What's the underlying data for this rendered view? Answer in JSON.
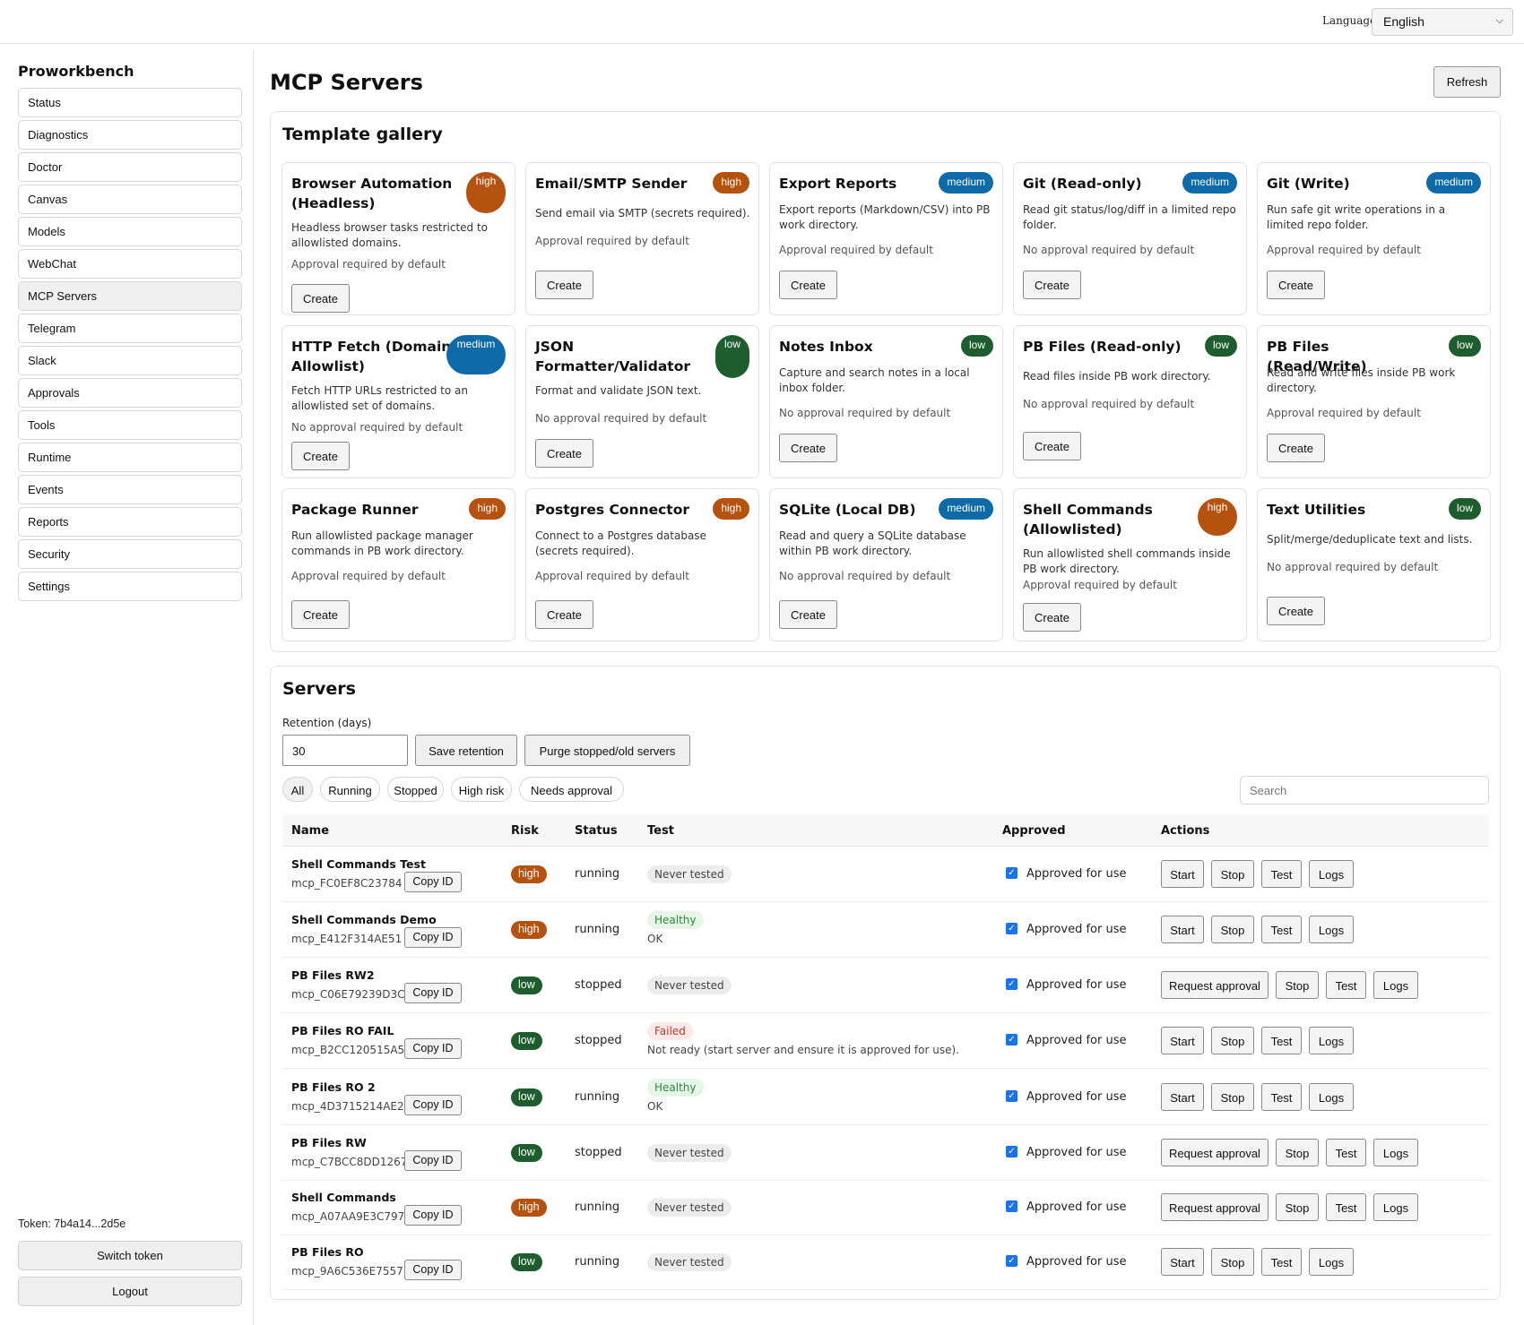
{
  "topbar": {
    "language_label": "Language",
    "language_value": "English"
  },
  "sidebar": {
    "brand": "Proworkbench",
    "items": [
      "Status",
      "Diagnostics",
      "Doctor",
      "Canvas",
      "Models",
      "WebChat",
      "MCP Servers",
      "Telegram",
      "Slack",
      "Approvals",
      "Tools",
      "Runtime",
      "Events",
      "Reports",
      "Security",
      "Settings"
    ],
    "active_item": "MCP Servers",
    "token": "Token: 7b4a14...2d5e",
    "switch_token": "Switch token",
    "logout": "Logout"
  },
  "page": {
    "title": "MCP Servers",
    "refresh": "Refresh"
  },
  "gallery": {
    "title": "Template gallery",
    "create_label": "Create",
    "cards": [
      {
        "title": "Browser Automation (Headless)",
        "risk": "high",
        "desc": "Headless browser tasks restricted to allowlisted domains.",
        "approval": "Approval required by default"
      },
      {
        "title": "Email/SMTP Sender",
        "risk": "high",
        "desc": "Send email via SMTP (secrets required).",
        "approval": "Approval required by default"
      },
      {
        "title": "Export Reports",
        "risk": "medium",
        "desc": "Export reports (Markdown/CSV) into PB work directory.",
        "approval": "Approval required by default"
      },
      {
        "title": "Git (Read-only)",
        "risk": "medium",
        "desc": "Read git status/log/diff in a limited repo folder.",
        "approval": "No approval required by default"
      },
      {
        "title": "Git (Write)",
        "risk": "medium",
        "desc": "Run safe git write operations in a limited repo folder.",
        "approval": "Approval required by default"
      },
      {
        "title": "HTTP Fetch (Domain Allowlist)",
        "risk": "medium",
        "desc": "Fetch HTTP URLs restricted to an allowlisted set of domains.",
        "approval": "No approval required by default"
      },
      {
        "title": "JSON Formatter/Validator",
        "risk": "low",
        "desc": "Format and validate JSON text.",
        "approval": "No approval required by default"
      },
      {
        "title": "Notes Inbox",
        "risk": "low",
        "desc": "Capture and search notes in a local inbox folder.",
        "approval": "No approval required by default"
      },
      {
        "title": "PB Files (Read-only)",
        "risk": "low",
        "desc": "Read files inside PB work directory.",
        "approval": "No approval required by default"
      },
      {
        "title": "PB Files (Read/Write)",
        "risk": "low",
        "desc": "Read and write files inside PB work directory.",
        "approval": "Approval required by default"
      },
      {
        "title": "Package Runner",
        "risk": "high",
        "desc": "Run allowlisted package manager commands in PB work directory.",
        "approval": "Approval required by default"
      },
      {
        "title": "Postgres Connector",
        "risk": "high",
        "desc": "Connect to a Postgres database (secrets required).",
        "approval": "Approval required by default"
      },
      {
        "title": "SQLite (Local DB)",
        "risk": "medium",
        "desc": "Read and query a SQLite database within PB work directory.",
        "approval": "No approval required by default"
      },
      {
        "title": "Shell Commands (Allowlisted)",
        "risk": "high",
        "desc": "Run allowlisted shell commands inside PB work directory.",
        "approval": "Approval required by default"
      },
      {
        "title": "Text Utilities",
        "risk": "low",
        "desc": "Split/merge/deduplicate text and lists.",
        "approval": "No approval required by default"
      }
    ]
  },
  "servers": {
    "title": "Servers",
    "retention_label": "Retention (days)",
    "retention_value": "30",
    "save_retention": "Save retention",
    "purge": "Purge stopped/old servers",
    "filters": [
      "All",
      "Running",
      "Stopped",
      "High risk",
      "Needs approval"
    ],
    "active_filter": "All",
    "search_placeholder": "Search",
    "columns": [
      "Name",
      "Risk",
      "Status",
      "Test",
      "Approved",
      "Actions"
    ],
    "copy_label": "Copy ID",
    "approved_label": "Approved for use",
    "actions": {
      "start": "Start",
      "request": "Request approval",
      "stop": "Stop",
      "test": "Test",
      "logs": "Logs"
    },
    "rows": [
      {
        "name": "Shell Commands Test",
        "id": "mcp_FC0EF8C23784",
        "risk": "high",
        "status": "running",
        "test": "Never tested",
        "test_note": "",
        "primary": "start"
      },
      {
        "name": "Shell Commands Demo",
        "id": "mcp_E412F314AE51",
        "risk": "high",
        "status": "running",
        "test": "Healthy",
        "test_note": "OK",
        "primary": "start"
      },
      {
        "name": "PB Files RW2",
        "id": "mcp_C06E79239D3C",
        "risk": "low",
        "status": "stopped",
        "test": "Never tested",
        "test_note": "",
        "primary": "request"
      },
      {
        "name": "PB Files RO FAIL",
        "id": "mcp_B2CC120515A5",
        "risk": "low",
        "status": "stopped",
        "test": "Failed",
        "test_note": "Not ready (start server and ensure it is approved for use).",
        "primary": "start"
      },
      {
        "name": "PB Files RO 2",
        "id": "mcp_4D3715214AE2",
        "risk": "low",
        "status": "running",
        "test": "Healthy",
        "test_note": "OK",
        "primary": "start"
      },
      {
        "name": "PB Files RW",
        "id": "mcp_C7BCC8DD1267",
        "risk": "low",
        "status": "stopped",
        "test": "Never tested",
        "test_note": "",
        "primary": "request"
      },
      {
        "name": "Shell Commands",
        "id": "mcp_A07AA9E3C797",
        "risk": "high",
        "status": "running",
        "test": "Never tested",
        "test_note": "",
        "primary": "request"
      },
      {
        "name": "PB Files RO",
        "id": "mcp_9A6C536E7557",
        "risk": "low",
        "status": "running",
        "test": "Never tested",
        "test_note": "",
        "primary": "start"
      }
    ]
  },
  "colors": {
    "high": "#b5520f",
    "medium": "#0e6aa8",
    "low": "#1e5e2e"
  }
}
